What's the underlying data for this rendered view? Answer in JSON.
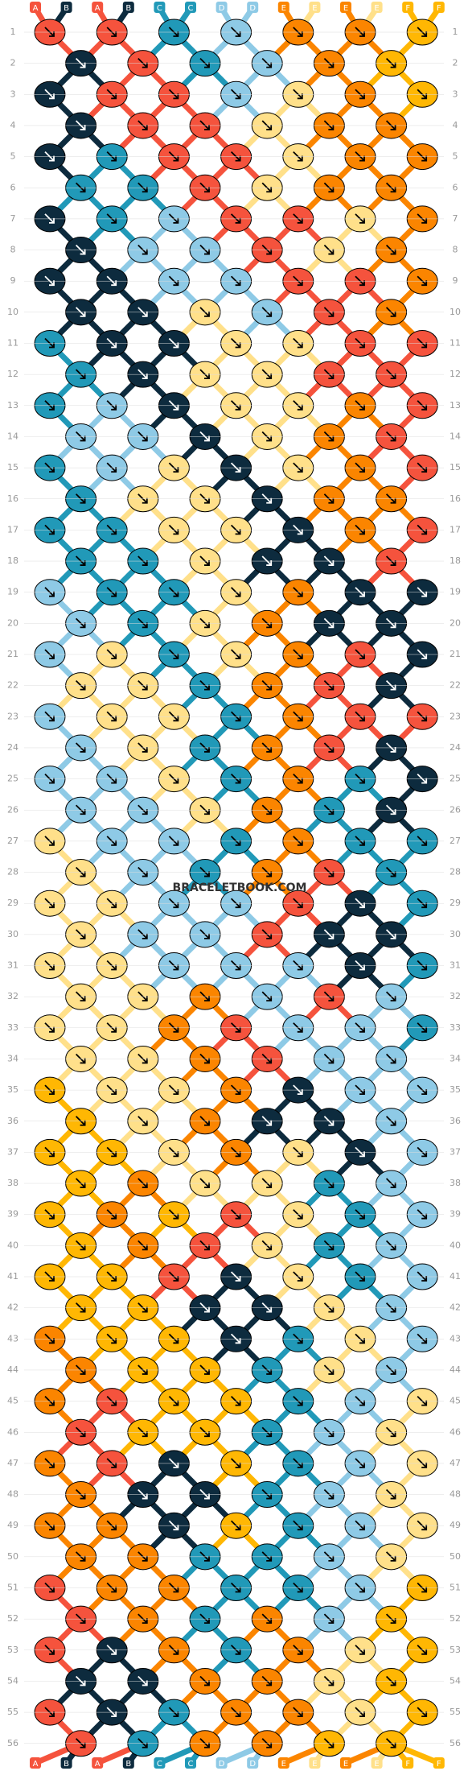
{
  "strands": [
    "A",
    "B",
    "A",
    "B",
    "C",
    "C",
    "D",
    "D",
    "E",
    "E",
    "E",
    "E",
    "F",
    "F"
  ],
  "strand_colors": [
    "r",
    "n",
    "r",
    "n",
    "t",
    "t",
    "l",
    "l",
    "o",
    "y",
    "o",
    "y",
    "g",
    "g"
  ],
  "row_numbers": [
    1,
    2,
    3,
    4,
    5,
    6,
    7,
    8,
    9,
    10,
    11,
    12,
    13,
    14,
    15,
    16,
    17,
    18,
    19,
    20,
    21,
    22,
    23,
    24,
    25,
    26,
    27,
    28,
    29,
    30,
    31,
    32,
    33,
    34,
    35,
    36,
    37,
    38,
    39,
    40,
    41,
    42,
    43,
    44,
    45,
    46,
    47,
    48,
    49,
    50,
    51,
    52,
    53,
    54,
    55,
    56
  ],
  "watermark": "BRACELETBOOK.COM",
  "palette": {
    "r": "#f5533d",
    "n": "#0d2b3e",
    "t": "#2199b8",
    "l": "#8ecae6",
    "o": "#fb8500",
    "y": "#ffe08a",
    "g": "#ffb703"
  },
  "knots": [
    "rrtloog",
    "nrtlog",
    "nrrlyog",
    "nrryoo",
    "ntrryoo",
    "ttryoo",
    "ntlrryo",
    "nllryo",
    "nnllrro",
    "nnylro",
    "tnnyyrr",
    "tnyyrr",
    "tlnyyor",
    "llnyor",
    "tlynyor",
    "tyynoo",
    "ttyynor",
    "ttynnr",
    "lttyonn",
    "ltyonn",
    "lytyorn",
    "yytorn",
    "lyytorr",
    "lytorn",
    "llytotn",
    "llyotn",
    "ylltott",
    "yltort",
    "yyllrnt",
    "yllrnn",
    "yylllnt",
    "yyolrl",
    "yyorllt",
    "yyorll",
    "gyyonll",
    "gyonnl",
    "ggyoynl",
    "goyytl",
    "gogrytl",
    "gorytl",
    "ggrnytl",
    "ggnnyl",
    "oggntyl",
    "oggtyl",
    "orggtly",
    "rggtly",
    "orngtly",
    "onntly",
    "oongtly",
    "oottly",
    "roottlg",
    "rotolg",
    "rnotoyg",
    "nnooyg",
    "rntooyg",
    "rtoogg"
  ]
}
